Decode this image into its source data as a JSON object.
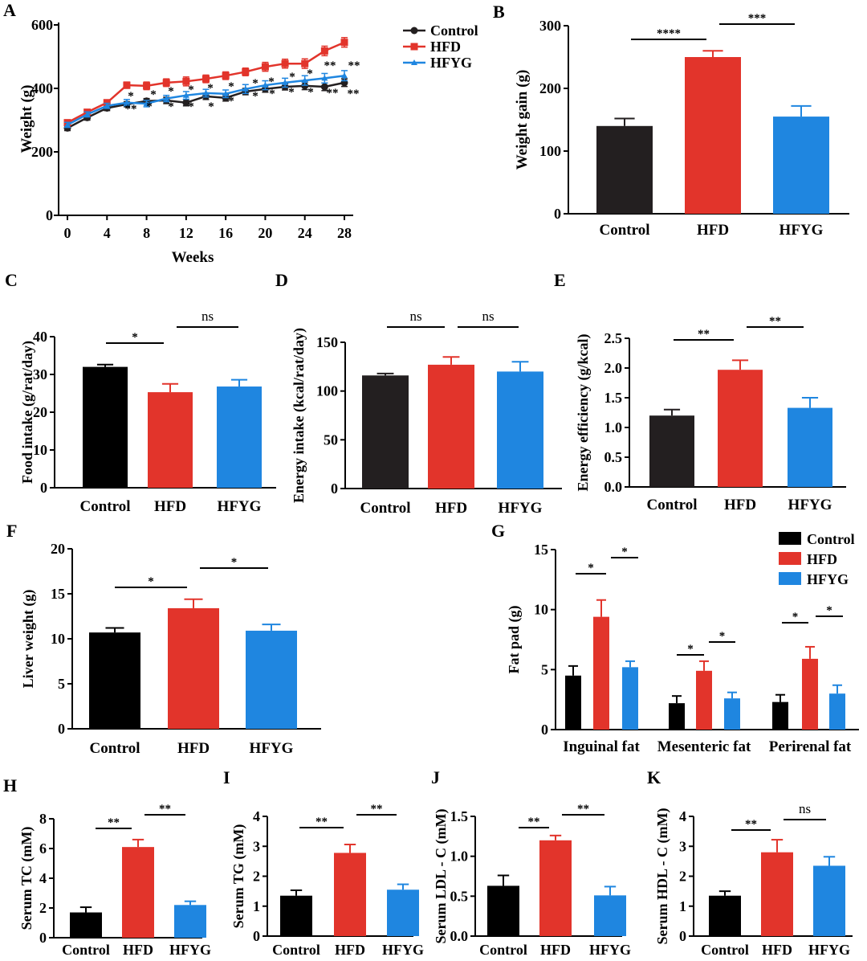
{
  "colors": {
    "control": "#231f20",
    "hfd": "#e2342b",
    "hfyg": "#1f86e0",
    "black": "#000000"
  },
  "chart_data": [
    {
      "id": "A",
      "panel_label": "A",
      "type": "line",
      "xlabel": "Weeks",
      "ylabel": "Weight (g)",
      "xlim": [
        0,
        28
      ],
      "ylim": [
        0,
        600
      ],
      "xticks": [
        "0",
        "4",
        "8",
        "12",
        "16",
        "20",
        "24",
        "28"
      ],
      "yticks": [
        "0",
        "200",
        "400",
        "600"
      ],
      "legend": {
        "position": "top-right",
        "entries": [
          "Control",
          "HFD",
          "HFYG"
        ]
      },
      "x": [
        0,
        2,
        4,
        6,
        8,
        10,
        12,
        14,
        16,
        18,
        20,
        22,
        24,
        26,
        28
      ],
      "series": [
        {
          "name": "Control",
          "color_key": "control",
          "marker": "circle",
          "values": [
            275,
            308,
            338,
            350,
            360,
            362,
            355,
            375,
            370,
            390,
            398,
            405,
            408,
            405,
            418
          ],
          "err": [
            8,
            8,
            8,
            8,
            8,
            10,
            10,
            10,
            10,
            10,
            10,
            10,
            12,
            12,
            12
          ]
        },
        {
          "name": "HFD",
          "color_key": "hfd",
          "marker": "square",
          "values": [
            292,
            325,
            355,
            410,
            408,
            418,
            422,
            430,
            440,
            452,
            468,
            478,
            478,
            518,
            545
          ],
          "err": [
            8,
            8,
            8,
            10,
            12,
            12,
            14,
            12,
            12,
            12,
            14,
            14,
            15,
            15,
            15
          ]
        },
        {
          "name": "HFYG",
          "color_key": "hfyg",
          "marker": "triangle",
          "values": [
            285,
            318,
            345,
            355,
            352,
            368,
            378,
            385,
            383,
            398,
            410,
            418,
            425,
            432,
            440
          ],
          "err": [
            8,
            8,
            8,
            10,
            10,
            10,
            12,
            12,
            12,
            14,
            14,
            14,
            15,
            15,
            16
          ]
        }
      ],
      "annotations_control": [
        "**",
        "*",
        "*",
        "*",
        "*",
        "*",
        "*",
        "*",
        "*",
        "*",
        "**",
        "**"
      ],
      "annotations_hfyg": [
        "*",
        "*",
        "*",
        "*",
        "*",
        "*",
        "*",
        "*",
        "*",
        "*",
        "**",
        "**"
      ]
    },
    {
      "id": "B",
      "panel_label": "B",
      "type": "bar",
      "ylabel": "Weight gain (g)",
      "ylim": [
        0,
        300
      ],
      "yticks": [
        "0",
        "100",
        "200",
        "300"
      ],
      "categories": [
        "Control",
        "HFD",
        "HFYG"
      ],
      "values": [
        140,
        250,
        155
      ],
      "err": [
        12,
        10,
        17
      ],
      "color_keys": [
        "control",
        "hfd",
        "hfyg"
      ],
      "significance": [
        {
          "from": 0,
          "to": 1,
          "label": "****"
        },
        {
          "from": 1,
          "to": 2,
          "label": "***"
        }
      ]
    },
    {
      "id": "C",
      "panel_label": "C",
      "type": "bar",
      "ylabel": "Food intake (g/rat/day)",
      "ylim": [
        0,
        40
      ],
      "yticks": [
        "0",
        "10",
        "20",
        "30",
        "40"
      ],
      "categories": [
        "Control",
        "HFD",
        "HFYG"
      ],
      "values": [
        32,
        25.3,
        26.8
      ],
      "err": [
        0.6,
        2.2,
        1.8
      ],
      "color_keys": [
        "black",
        "hfd",
        "hfyg"
      ],
      "significance": [
        {
          "from": 0,
          "to": 1,
          "label": "*"
        },
        {
          "from": 1,
          "to": 2,
          "label": "ns"
        }
      ]
    },
    {
      "id": "D",
      "panel_label": "D",
      "type": "bar",
      "ylabel": "Energy intake (kcal/rat/day)",
      "ylim": [
        0,
        150
      ],
      "yticks": [
        "0",
        "50",
        "100",
        "150"
      ],
      "categories": [
        "Control",
        "HFD",
        "HFYG"
      ],
      "values": [
        116,
        127,
        120
      ],
      "err": [
        2,
        8,
        10
      ],
      "color_keys": [
        "control",
        "hfd",
        "hfyg"
      ],
      "significance": [
        {
          "from": 0,
          "to": 1,
          "label": "ns"
        },
        {
          "from": 1,
          "to": 2,
          "label": "ns"
        }
      ]
    },
    {
      "id": "E",
      "panel_label": "E",
      "type": "bar",
      "ylabel": "Energy efficiency (g/kcal)",
      "ylim": [
        0,
        2.5
      ],
      "yticks": [
        "0.0",
        "0.5",
        "1.0",
        "1.5",
        "2.0",
        "2.5"
      ],
      "categories": [
        "Control",
        "HFD",
        "HFYG"
      ],
      "values": [
        1.2,
        1.97,
        1.33
      ],
      "err": [
        0.1,
        0.16,
        0.17
      ],
      "color_keys": [
        "control",
        "hfd",
        "hfyg"
      ],
      "significance": [
        {
          "from": 0,
          "to": 1,
          "label": "**"
        },
        {
          "from": 1,
          "to": 2,
          "label": "**"
        }
      ]
    },
    {
      "id": "F",
      "panel_label": "F",
      "type": "bar",
      "ylabel": "Liver weight (g)",
      "ylim": [
        0,
        20
      ],
      "yticks": [
        "0",
        "5",
        "10",
        "15",
        "20"
      ],
      "categories": [
        "Control",
        "HFD",
        "HFYG"
      ],
      "values": [
        10.7,
        13.4,
        10.9
      ],
      "err": [
        0.5,
        1.0,
        0.7
      ],
      "color_keys": [
        "black",
        "hfd",
        "hfyg"
      ],
      "significance": [
        {
          "from": 0,
          "to": 1,
          "label": "*"
        },
        {
          "from": 1,
          "to": 2,
          "label": "*"
        }
      ]
    },
    {
      "id": "G",
      "panel_label": "G",
      "type": "grouped-bar",
      "ylabel": "Fat pad (g)",
      "ylim": [
        0,
        15
      ],
      "yticks": [
        "0",
        "5",
        "10",
        "15"
      ],
      "categories": [
        "Inguinal fat",
        "Mesenteric fat",
        "Perirenal fat"
      ],
      "legend": {
        "position": "top-right",
        "entries": [
          "Control",
          "HFD",
          "HFYG"
        ]
      },
      "series": [
        {
          "name": "Control",
          "color_key": "black",
          "values": [
            4.5,
            2.2,
            2.3
          ],
          "err": [
            0.8,
            0.6,
            0.6
          ]
        },
        {
          "name": "HFD",
          "color_key": "hfd",
          "values": [
            9.4,
            4.9,
            5.9
          ],
          "err": [
            1.4,
            0.8,
            1.0
          ]
        },
        {
          "name": "HFYG",
          "color_key": "hfyg",
          "values": [
            5.2,
            2.6,
            3.0
          ],
          "err": [
            0.5,
            0.5,
            0.7
          ]
        }
      ],
      "significance": [
        "*",
        "*",
        "*",
        "*",
        "*",
        "*"
      ]
    },
    {
      "id": "H",
      "panel_label": "H",
      "type": "bar",
      "ylabel": "Serum TC (mM)",
      "ylim": [
        0,
        8
      ],
      "yticks": [
        "0",
        "2",
        "4",
        "6",
        "8"
      ],
      "categories": [
        "Control",
        "HFD",
        "HFYG"
      ],
      "values": [
        1.7,
        6.1,
        2.2
      ],
      "err": [
        0.35,
        0.5,
        0.25
      ],
      "color_keys": [
        "black",
        "hfd",
        "hfyg"
      ],
      "significance": [
        {
          "from": 0,
          "to": 1,
          "label": "**"
        },
        {
          "from": 1,
          "to": 2,
          "label": "**"
        }
      ]
    },
    {
      "id": "I",
      "panel_label": "I",
      "type": "bar",
      "ylabel": "Serum TG (mM)",
      "ylim": [
        0,
        4
      ],
      "yticks": [
        "0",
        "1",
        "2",
        "3",
        "4"
      ],
      "categories": [
        "Control",
        "HFD",
        "HFYG"
      ],
      "values": [
        1.35,
        2.78,
        1.55
      ],
      "err": [
        0.18,
        0.28,
        0.18
      ],
      "color_keys": [
        "black",
        "hfd",
        "hfyg"
      ],
      "significance": [
        {
          "from": 0,
          "to": 1,
          "label": "**"
        },
        {
          "from": 1,
          "to": 2,
          "label": "**"
        }
      ]
    },
    {
      "id": "J",
      "panel_label": "J",
      "type": "bar",
      "ylabel": "Serum LDL - C (mM)",
      "ylim": [
        0,
        1.5
      ],
      "yticks": [
        "0.0",
        "0.5",
        "1.0",
        "1.5"
      ],
      "categories": [
        "Control",
        "HFD",
        "HFYG"
      ],
      "values": [
        0.63,
        1.2,
        0.51
      ],
      "err": [
        0.13,
        0.06,
        0.11
      ],
      "color_keys": [
        "black",
        "hfd",
        "hfyg"
      ],
      "significance": [
        {
          "from": 0,
          "to": 1,
          "label": "**"
        },
        {
          "from": 1,
          "to": 2,
          "label": "**"
        }
      ]
    },
    {
      "id": "K",
      "panel_label": "K",
      "type": "bar",
      "ylabel": "Serum HDL - C (mM)",
      "ylim": [
        0,
        4
      ],
      "yticks": [
        "0",
        "1",
        "2",
        "3",
        "4"
      ],
      "categories": [
        "Control",
        "HFD",
        "HFYG"
      ],
      "values": [
        1.35,
        2.8,
        2.35
      ],
      "err": [
        0.15,
        0.42,
        0.3
      ],
      "color_keys": [
        "black",
        "hfd",
        "hfyg"
      ],
      "significance": [
        {
          "from": 0,
          "to": 1,
          "label": "**"
        },
        {
          "from": 1,
          "to": 2,
          "label": "ns"
        }
      ]
    }
  ]
}
